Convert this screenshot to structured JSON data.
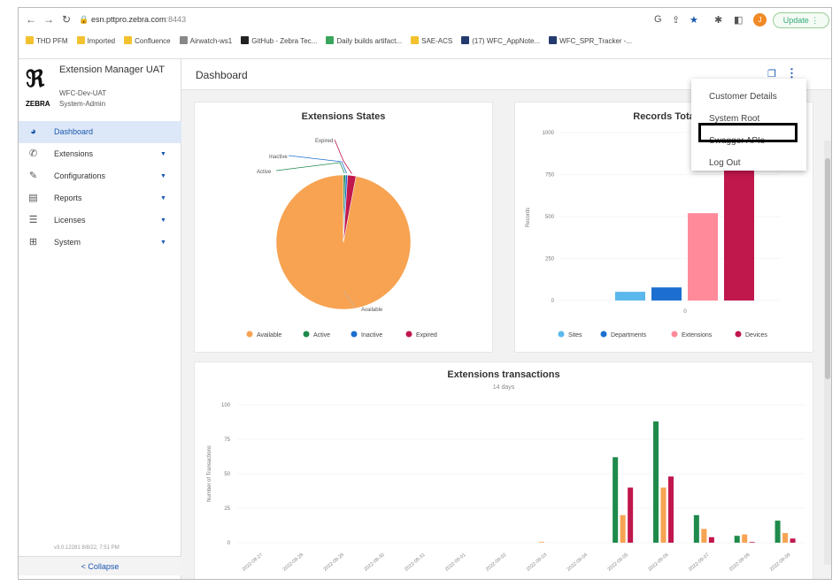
{
  "browser": {
    "url_host": "esn.pttpro.zebra.com",
    "url_port": ":8443",
    "update_label": "Update",
    "profile_initial": "J",
    "bookmarks": [
      {
        "label": "THD PFM",
        "color": "#f2c12e"
      },
      {
        "label": "Imported",
        "color": "#f2c12e"
      },
      {
        "label": "Confluence",
        "color": "#f2c12e"
      },
      {
        "label": "Airwatch-ws1",
        "color": "#888888"
      },
      {
        "label": "GitHub - Zebra Tec...",
        "color": "#222222"
      },
      {
        "label": "Daily builds artifact...",
        "color": "#3aa55b"
      },
      {
        "label": "SAE-ACS",
        "color": "#f2c12e"
      },
      {
        "label": "(17) WFC_AppNote...",
        "color": "#233a6e"
      },
      {
        "label": "WFC_SPR_Tracker -...",
        "color": "#233a6e"
      }
    ]
  },
  "sidebar": {
    "app_title": "Extension Manager UAT",
    "env": "WFC-Dev-UAT",
    "role": "System-Admin",
    "logo_word": "ZEBRA",
    "items": [
      {
        "label": "Dashboard",
        "icon": "gauge-icon",
        "glyph": "◕",
        "active": true,
        "caret": false
      },
      {
        "label": "Extensions",
        "icon": "phone-icon",
        "glyph": "✆",
        "active": false,
        "caret": true
      },
      {
        "label": "Configurations",
        "icon": "edit-icon",
        "glyph": "✎",
        "active": false,
        "caret": true
      },
      {
        "label": "Reports",
        "icon": "reports-icon",
        "glyph": "▤",
        "active": false,
        "caret": true
      },
      {
        "label": "Licenses",
        "icon": "list-icon",
        "glyph": "☰",
        "active": false,
        "caret": true
      },
      {
        "label": "System",
        "icon": "sitemap-icon",
        "glyph": "⊞",
        "active": false,
        "caret": true
      }
    ],
    "version": "v3.0.12281 8/8/22, 7:51 PM",
    "collapse_label": "< Collapse"
  },
  "header": {
    "title": "Dashboard"
  },
  "menu": {
    "items": [
      "Customer Details",
      "System Root",
      "Swagger APIs",
      "Log Out"
    ]
  },
  "colors": {
    "available": "#f7a352",
    "active": "#1f8a4c",
    "inactive": "#1c6fd1",
    "expired": "#c0174c",
    "sites": "#5bb8ec",
    "departments": "#1c6fd1",
    "extensions": "#ff8a9a",
    "devices": "#c0174c"
  },
  "chart_data": [
    {
      "type": "pie",
      "title": "Extensions States",
      "labels": [
        "Available",
        "Active",
        "Inactive",
        "Expired"
      ],
      "values": [
        97,
        0.5,
        0.5,
        2
      ],
      "legend": "bottom"
    },
    {
      "type": "bar",
      "title": "Records Total",
      "title_visible": "Records Tota",
      "ylabel": "Records",
      "ylim": [
        0,
        1000
      ],
      "yticks": [
        0,
        250,
        500,
        750,
        1000
      ],
      "categories": [
        "0"
      ],
      "series": [
        {
          "name": "Sites",
          "values": [
            52
          ]
        },
        {
          "name": "Departments",
          "values": [
            78
          ]
        },
        {
          "name": "Extensions",
          "values": [
            520
          ]
        },
        {
          "name": "Devices",
          "values": [
            800
          ]
        }
      ],
      "legend": "bottom"
    },
    {
      "type": "bar",
      "title": "Extensions transactions",
      "subtitle": "14 days",
      "ylabel": "Number of Transactions",
      "ylim": [
        0,
        100
      ],
      "yticks": [
        0,
        25,
        50,
        75,
        100
      ],
      "categories": [
        "2022-08-27",
        "2022-08-28",
        "2022-08-29",
        "2022-08-30",
        "2022-08-31",
        "2022-09-01",
        "2022-09-02",
        "2022-09-03",
        "2022-09-04",
        "2022-09-05",
        "2022-09-06",
        "2022-09-07",
        "2022-09-08",
        "2022-09-09"
      ],
      "series": [
        {
          "name": "Active",
          "values": [
            0,
            0,
            0,
            0,
            0,
            0,
            0,
            0,
            0,
            62,
            88,
            20,
            5,
            16
          ]
        },
        {
          "name": "Available",
          "values": [
            0,
            0,
            0,
            0,
            0,
            0,
            0,
            0.5,
            0,
            20,
            40,
            10,
            6,
            7
          ]
        },
        {
          "name": "Expired",
          "values": [
            0,
            0,
            0,
            0,
            0,
            0,
            0,
            0,
            0,
            40,
            48,
            4,
            0.5,
            3
          ]
        }
      ]
    }
  ]
}
